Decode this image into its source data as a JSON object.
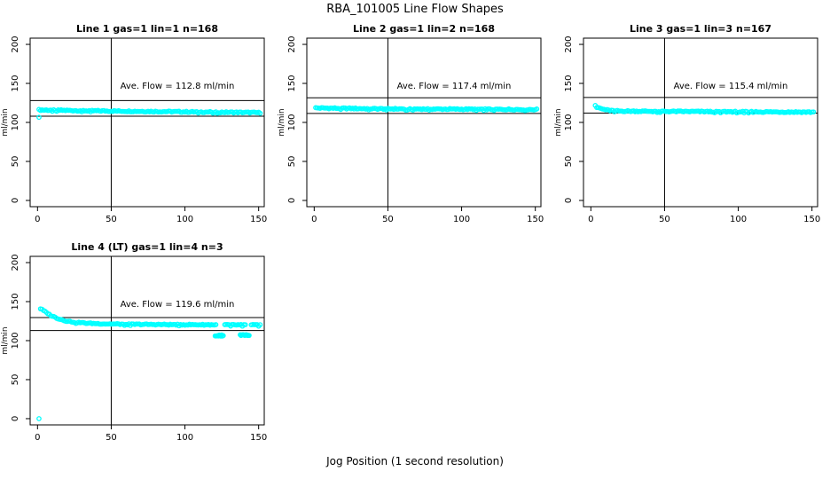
{
  "figure": {
    "title": "RBA_101005  Line Flow Shapes",
    "xlabel": "Jog Position (1 second resolution)",
    "background": "#ffffff",
    "point_color": "#00ffff",
    "line_color": "#000000"
  },
  "chart_data": [
    {
      "type": "scatter",
      "title": "Line 1 gas=1 lin=1 n=168",
      "annotation": "Ave. Flow =  112.8  ml/min",
      "ave_flow_ml_min": 112.8,
      "n": 168,
      "ylabel": "ml/min",
      "xticks": [
        0,
        50,
        100,
        150
      ],
      "yticks": [
        0,
        50,
        100,
        150,
        200
      ],
      "xlim": [
        -5,
        153.8
      ],
      "ylim": [
        -8,
        208
      ],
      "vline_x": 50,
      "hlines": [
        128,
        108
      ],
      "x_range": [
        1,
        151
      ],
      "shape_anchors": [
        [
          1,
          116
        ],
        [
          30,
          115
        ],
        [
          80,
          114
        ],
        [
          151,
          112.5
        ]
      ],
      "jitter": 0.8,
      "gaps": [],
      "dip_clusters": [],
      "outliers": [
        [
          1,
          106.5
        ]
      ],
      "row": 0,
      "col": 0
    },
    {
      "type": "scatter",
      "title": "Line 2 gas=1 lin=2 n=168",
      "annotation": "Ave. Flow =  117.4  ml/min",
      "ave_flow_ml_min": 117.4,
      "n": 168,
      "ylabel": "ml/min",
      "xticks": [
        0,
        50,
        100,
        150
      ],
      "yticks": [
        0,
        50,
        100,
        150,
        200
      ],
      "xlim": [
        -5,
        153.8
      ],
      "ylim": [
        -8,
        208
      ],
      "vline_x": 50,
      "hlines": [
        131.5,
        111.5
      ],
      "x_range": [
        1,
        151
      ],
      "shape_anchors": [
        [
          1,
          118.5
        ],
        [
          40,
          117.5
        ],
        [
          151,
          116.5
        ]
      ],
      "jitter": 0.8,
      "gaps": [],
      "dip_clusters": [],
      "outliers": [],
      "row": 0,
      "col": 1
    },
    {
      "type": "scatter",
      "title": "Line 3 gas=1 lin=3 n=167",
      "annotation": "Ave. Flow =  115.4  ml/min",
      "ave_flow_ml_min": 115.4,
      "n": 167,
      "ylabel": "ml/min",
      "xticks": [
        0,
        50,
        100,
        150
      ],
      "yticks": [
        0,
        50,
        100,
        150,
        200
      ],
      "xlim": [
        -5,
        153.8
      ],
      "ylim": [
        -8,
        208
      ],
      "vline_x": 50,
      "hlines": [
        132,
        112
      ],
      "x_range": [
        3,
        151
      ],
      "shape_anchors": [
        [
          3,
          122
        ],
        [
          5,
          119
        ],
        [
          8,
          117
        ],
        [
          12,
          115.5
        ],
        [
          20,
          114.5
        ],
        [
          60,
          114
        ],
        [
          151,
          113.2
        ]
      ],
      "jitter": 0.8,
      "gaps": [],
      "dip_clusters": [],
      "outliers": [],
      "row": 0,
      "col": 2
    },
    {
      "type": "scatter",
      "title": "Line 4 (LT) gas=1 lin=4 n=3",
      "annotation": "Ave. Flow =  119.6  ml/min",
      "ave_flow_ml_min": 119.6,
      "n": 3,
      "ylabel": "ml/min",
      "xticks": [
        0,
        50,
        100,
        150
      ],
      "yticks": [
        0,
        50,
        100,
        150,
        200
      ],
      "xlim": [
        -5,
        153.8
      ],
      "ylim": [
        -8,
        208
      ],
      "vline_x": 50,
      "hlines": [
        129.5,
        113
      ],
      "x_range": [
        2,
        151
      ],
      "shape_anchors": [
        [
          2,
          141
        ],
        [
          4,
          138.5
        ],
        [
          6,
          136
        ],
        [
          8,
          133.5
        ],
        [
          10,
          131.5
        ],
        [
          13,
          129
        ],
        [
          16,
          127
        ],
        [
          20,
          125
        ],
        [
          26,
          123.5
        ],
        [
          34,
          122.3
        ],
        [
          45,
          121.5
        ],
        [
          60,
          121
        ],
        [
          90,
          120.5
        ],
        [
          120,
          120.3
        ],
        [
          151,
          120
        ]
      ],
      "jitter": 0.7,
      "gaps": [
        [
          121.4,
          126.2
        ],
        [
          141.4,
          144.2
        ]
      ],
      "dip_clusters": [
        {
          "x0": 120.5,
          "x1": 126.2,
          "y": 106.5
        },
        {
          "x0": 137.5,
          "x1": 143.8,
          "y": 106.8
        }
      ],
      "outliers": [
        [
          1,
          0
        ]
      ],
      "row": 1,
      "col": 0
    }
  ]
}
